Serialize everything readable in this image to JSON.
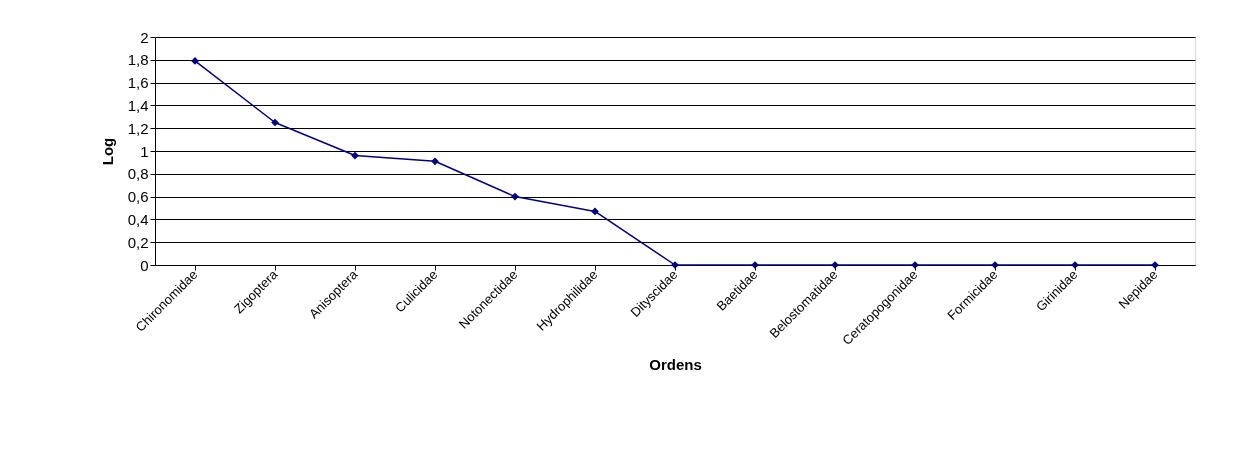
{
  "chart_data": {
    "type": "line",
    "xlabel": "Ordens",
    "ylabel": "Log",
    "categories": [
      "Chironomidae",
      "Zigoptera",
      "Anisoptera",
      "Culicidae",
      "Notonectidae",
      "Hydrophilidae",
      "Dityscidae",
      "Baetidae",
      "Belostomatidae",
      "Ceratopogonidae",
      "Formicidae",
      "Girinidae",
      "Nepidae"
    ],
    "series": [
      {
        "color": "#000080",
        "values": [
          1.79,
          1.25,
          0.96,
          0.91,
          0.6,
          0.47,
          0,
          0,
          0,
          0,
          0,
          0,
          0
        ]
      }
    ],
    "ylim": [
      0,
      2
    ],
    "yticks": [
      0,
      {
        "value": 0.2,
        "label": "0,2"
      },
      {
        "value": 0.4,
        "label": "0,4"
      },
      {
        "value": 0.6,
        "label": "0,6"
      },
      {
        "value": 0.8,
        "label": "0,8"
      },
      1,
      {
        "value": 1.2,
        "label": "1,2"
      },
      {
        "value": 1.4,
        "label": "1,4"
      },
      {
        "value": 1.6,
        "label": "1,6"
      },
      {
        "value": 1.8,
        "label": "1,8"
      },
      2
    ],
    "grid": "y",
    "marker": "diamond",
    "line_style": "solid"
  }
}
